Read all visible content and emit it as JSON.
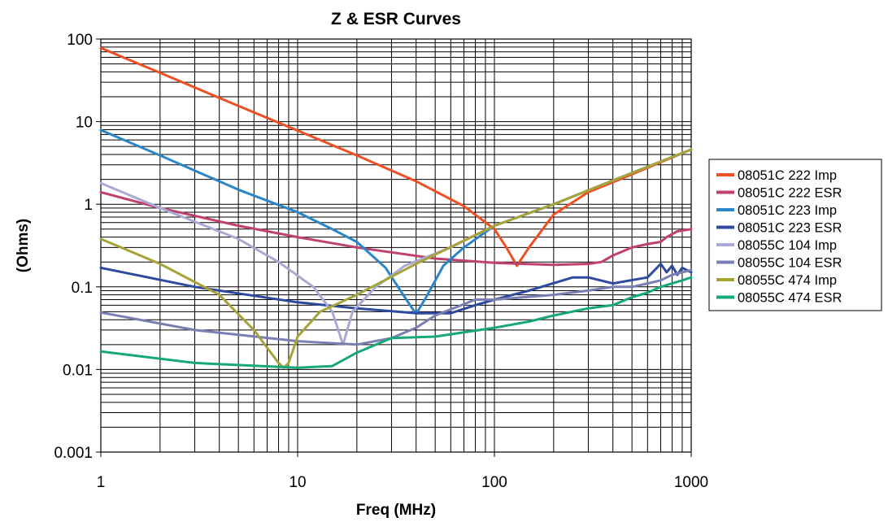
{
  "chart_data": {
    "type": "line",
    "title": "Z & ESR Curves",
    "xlabel": "Freq (MHz)",
    "ylabel": "(Ohms)",
    "xscale": "log",
    "yscale": "log",
    "xlim": [
      1,
      1000
    ],
    "ylim": [
      0.001,
      100
    ],
    "x_ticks": [
      "1",
      "10",
      "100",
      "1000"
    ],
    "y_ticks": [
      "0.001",
      "0.01",
      "0.1",
      "1",
      "10",
      "100"
    ],
    "grid": true,
    "legend_position": "right",
    "series": [
      {
        "name": "08051C 222 Imp",
        "color": "#f04e23",
        "points": [
          [
            1,
            78
          ],
          [
            2,
            39
          ],
          [
            5,
            15.5
          ],
          [
            10,
            7.8
          ],
          [
            20,
            3.9
          ],
          [
            40,
            1.9
          ],
          [
            70,
            0.95
          ],
          [
            100,
            0.5
          ],
          [
            115,
            0.3
          ],
          [
            130,
            0.18
          ],
          [
            150,
            0.3
          ],
          [
            200,
            0.75
          ],
          [
            300,
            1.4
          ],
          [
            500,
            2.3
          ],
          [
            1000,
            4.6
          ]
        ]
      },
      {
        "name": "08051C 222 ESR",
        "color": "#c0406e",
        "points": [
          [
            1,
            1.4
          ],
          [
            2,
            0.9
          ],
          [
            5,
            0.55
          ],
          [
            10,
            0.4
          ],
          [
            20,
            0.3
          ],
          [
            50,
            0.22
          ],
          [
            100,
            0.195
          ],
          [
            200,
            0.185
          ],
          [
            300,
            0.19
          ],
          [
            350,
            0.2
          ],
          [
            400,
            0.24
          ],
          [
            500,
            0.3
          ],
          [
            600,
            0.33
          ],
          [
            700,
            0.35
          ],
          [
            750,
            0.4
          ],
          [
            850,
            0.47
          ],
          [
            1000,
            0.5
          ]
        ]
      },
      {
        "name": "08051C 223 Imp",
        "color": "#2a86c9",
        "points": [
          [
            1,
            7.9
          ],
          [
            2,
            3.9
          ],
          [
            5,
            1.5
          ],
          [
            10,
            0.8
          ],
          [
            15,
            0.5
          ],
          [
            20,
            0.35
          ],
          [
            28,
            0.17
          ],
          [
            35,
            0.075
          ],
          [
            40,
            0.047
          ],
          [
            45,
            0.075
          ],
          [
            55,
            0.18
          ],
          [
            70,
            0.3
          ],
          [
            100,
            0.55
          ],
          [
            200,
            1.0
          ],
          [
            500,
            2.4
          ],
          [
            1000,
            4.6
          ]
        ]
      },
      {
        "name": "08051C 223 ESR",
        "color": "#2e4a9e",
        "points": [
          [
            1,
            0.17
          ],
          [
            3,
            0.1
          ],
          [
            10,
            0.065
          ],
          [
            20,
            0.055
          ],
          [
            40,
            0.048
          ],
          [
            60,
            0.048
          ],
          [
            80,
            0.06
          ],
          [
            100,
            0.07
          ],
          [
            150,
            0.09
          ],
          [
            250,
            0.13
          ],
          [
            300,
            0.13
          ],
          [
            400,
            0.11
          ],
          [
            600,
            0.13
          ],
          [
            700,
            0.19
          ],
          [
            750,
            0.15
          ],
          [
            800,
            0.18
          ],
          [
            850,
            0.14
          ],
          [
            900,
            0.17
          ],
          [
            1000,
            0.15
          ]
        ]
      },
      {
        "name": "08055C 104 Imp",
        "color": "#a9a9d4",
        "points": [
          [
            1,
            1.8
          ],
          [
            2,
            0.9
          ],
          [
            5,
            0.38
          ],
          [
            8,
            0.2
          ],
          [
            12,
            0.1
          ],
          [
            15,
            0.05
          ],
          [
            17,
            0.02
          ],
          [
            19,
            0.05
          ],
          [
            25,
            0.1
          ],
          [
            35,
            0.18
          ],
          [
            60,
            0.3
          ],
          [
            100,
            0.55
          ],
          [
            200,
            1.0
          ],
          [
            500,
            2.4
          ],
          [
            1000,
            4.6
          ]
        ]
      },
      {
        "name": "08055C 104 ESR",
        "color": "#7a7fb3",
        "points": [
          [
            1,
            0.049
          ],
          [
            3,
            0.03
          ],
          [
            10,
            0.022
          ],
          [
            20,
            0.02
          ],
          [
            30,
            0.024
          ],
          [
            40,
            0.032
          ],
          [
            50,
            0.045
          ],
          [
            80,
            0.07
          ],
          [
            100,
            0.07
          ],
          [
            200,
            0.08
          ],
          [
            300,
            0.09
          ],
          [
            400,
            0.1
          ],
          [
            500,
            0.1
          ],
          [
            600,
            0.11
          ],
          [
            700,
            0.12
          ],
          [
            800,
            0.14
          ],
          [
            900,
            0.15
          ],
          [
            1000,
            0.16
          ]
        ]
      },
      {
        "name": "08055C 474 Imp",
        "color": "#a6a339",
        "points": [
          [
            1,
            0.38
          ],
          [
            2,
            0.19
          ],
          [
            4,
            0.08
          ],
          [
            6,
            0.03
          ],
          [
            8,
            0.012
          ],
          [
            8.5,
            0.0105
          ],
          [
            9,
            0.012
          ],
          [
            10,
            0.025
          ],
          [
            13,
            0.05
          ],
          [
            20,
            0.08
          ],
          [
            40,
            0.19
          ],
          [
            100,
            0.55
          ],
          [
            200,
            1.0
          ],
          [
            500,
            2.4
          ],
          [
            1000,
            4.6
          ]
        ]
      },
      {
        "name": "08055C 474 ESR",
        "color": "#17a87a",
        "points": [
          [
            1,
            0.0165
          ],
          [
            3,
            0.012
          ],
          [
            10,
            0.0105
          ],
          [
            15,
            0.011
          ],
          [
            20,
            0.016
          ],
          [
            30,
            0.024
          ],
          [
            50,
            0.025
          ],
          [
            100,
            0.032
          ],
          [
            150,
            0.038
          ],
          [
            200,
            0.045
          ],
          [
            300,
            0.055
          ],
          [
            400,
            0.06
          ],
          [
            500,
            0.075
          ],
          [
            600,
            0.085
          ],
          [
            700,
            0.1
          ],
          [
            800,
            0.11
          ],
          [
            900,
            0.12
          ],
          [
            1000,
            0.13
          ]
        ]
      }
    ]
  }
}
